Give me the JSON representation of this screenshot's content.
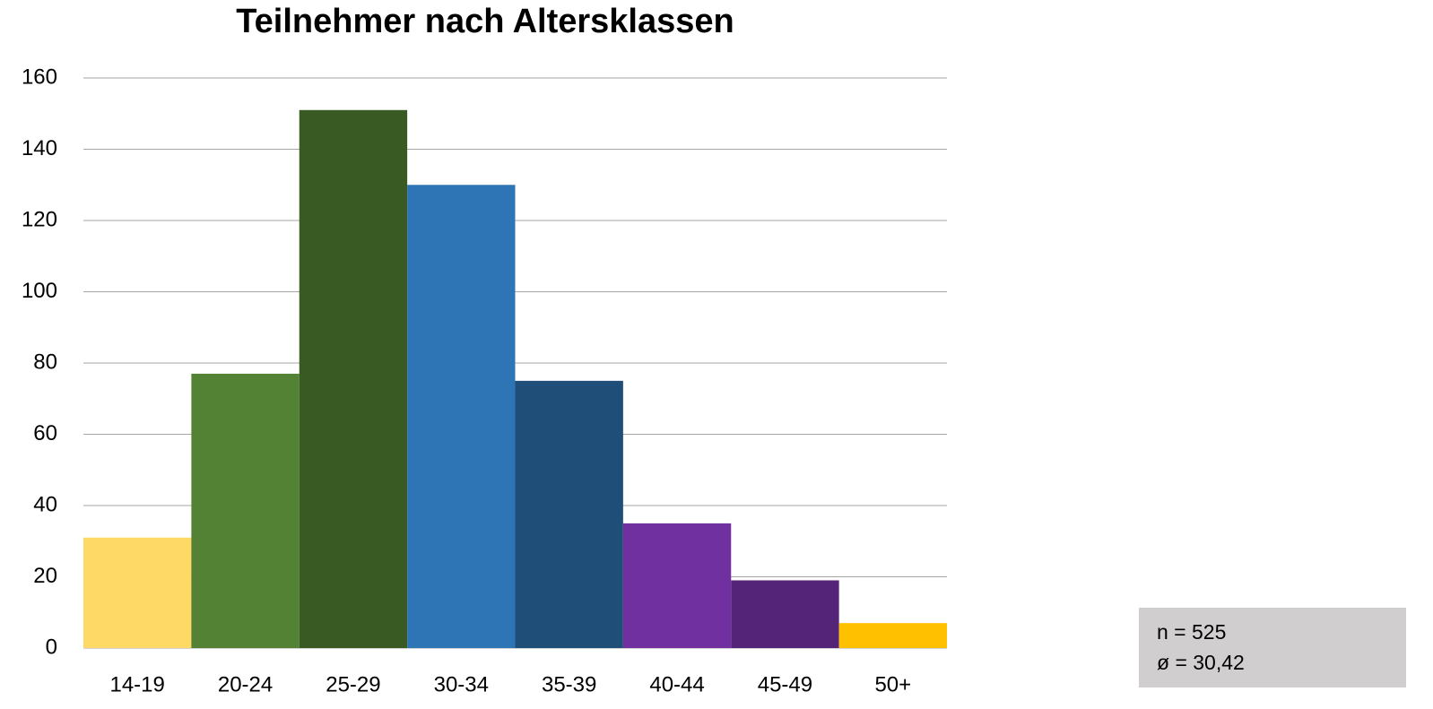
{
  "chart_data": {
    "type": "bar",
    "title": "Teilnehmer nach Altersklassen",
    "categories": [
      "14-19",
      "20-24",
      "25-29",
      "30-34",
      "35-39",
      "40-44",
      "45-49",
      "50+"
    ],
    "values": [
      31,
      77,
      151,
      130,
      75,
      35,
      19,
      7
    ],
    "colors": [
      "#ffd966",
      "#548235",
      "#3a5a24",
      "#2e75b6",
      "#1f4e79",
      "#7030a0",
      "#542479",
      "#ffc000"
    ],
    "ylim": [
      0,
      160
    ],
    "yticks": [
      0,
      20,
      40,
      60,
      80,
      100,
      120,
      140,
      160
    ],
    "grid": true,
    "annotations": [
      "n = 525",
      "ø = 30,42"
    ]
  }
}
